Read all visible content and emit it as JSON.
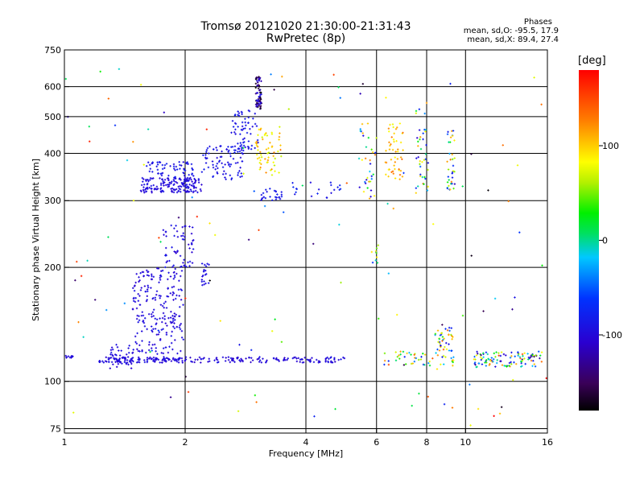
{
  "chart_data": {
    "type": "scatter",
    "title": "Tromsø 20121020 21:30:00-21:31:43",
    "subtitle": "RwPretec (8p)",
    "xlabel": "Frequency [MHz]",
    "ylabel": "Stationary phase Virtual Height [km]",
    "x_scale": "log",
    "y_scale": "log",
    "xlim": [
      1,
      16
    ],
    "ylim": [
      73,
      750
    ],
    "x_ticks": [
      1,
      2,
      4,
      6,
      8,
      10,
      16
    ],
    "y_ticks": [
      75,
      100,
      200,
      300,
      400,
      500,
      600,
      750
    ],
    "grid": true,
    "phase_stats": {
      "heading": "Phases",
      "o_line": "mean, sd,O: -95.5, 17.9",
      "x_line": "mean, sd,X: 89.4, 27.4"
    },
    "colorbar": {
      "unit": "[deg]",
      "range": [
        -180,
        180
      ],
      "tick_values": [
        -100,
        0,
        100
      ],
      "tick_labels": [
        "-100",
        "0",
        "100"
      ]
    },
    "clusters": [
      {
        "x": [
          1.0,
          1.05
        ],
        "y": [
          115,
          117
        ],
        "phase": [
          -100,
          -100
        ],
        "n": 10
      },
      {
        "x": [
          1.22,
          1.95
        ],
        "y": [
          112,
          116
        ],
        "phase": [
          -110,
          -90
        ],
        "n": 120
      },
      {
        "x": [
          1.95,
          5.0
        ],
        "y": [
          112,
          116
        ],
        "phase": [
          -115,
          -90
        ],
        "n": 130
      },
      {
        "x": [
          1.3,
          1.5
        ],
        "y": [
          108,
          125
        ],
        "phase": [
          -110,
          -90
        ],
        "n": 40
      },
      {
        "x": [
          1.48,
          1.98
        ],
        "y": [
          118,
          200
        ],
        "phase": [
          -110,
          -90
        ],
        "n": 220
      },
      {
        "x": [
          1.75,
          2.1
        ],
        "y": [
          200,
          260
        ],
        "phase": [
          -110,
          -85
        ],
        "n": 60
      },
      {
        "x": [
          2.2,
          2.3
        ],
        "y": [
          175,
          205
        ],
        "phase": [
          -100,
          -90
        ],
        "n": 20
      },
      {
        "x": [
          1.55,
          2.2
        ],
        "y": [
          315,
          345
        ],
        "phase": [
          -110,
          -90
        ],
        "n": 170
      },
      {
        "x": [
          1.6,
          2.1
        ],
        "y": [
          345,
          380
        ],
        "phase": [
          -100,
          -80
        ],
        "n": 60
      },
      {
        "x": [
          2.2,
          2.8
        ],
        "y": [
          340,
          420
        ],
        "phase": [
          -100,
          -80
        ],
        "n": 90
      },
      {
        "x": [
          2.6,
          3.05
        ],
        "y": [
          410,
          520
        ],
        "phase": [
          -100,
          -80
        ],
        "n": 60
      },
      {
        "x": [
          3.0,
          3.1
        ],
        "y": [
          520,
          640
        ],
        "phase": [
          -180,
          -90
        ],
        "n": 70
      },
      {
        "x": [
          3.0,
          3.5
        ],
        "y": [
          350,
          470
        ],
        "phase": [
          60,
          130
        ],
        "n": 60
      },
      {
        "x": [
          3.05,
          3.5
        ],
        "y": [
          300,
          325
        ],
        "phase": [
          -100,
          -80
        ],
        "n": 25
      },
      {
        "x": [
          3.6,
          4.9
        ],
        "y": [
          305,
          335
        ],
        "phase": [
          -100,
          -70
        ],
        "n": 20
      },
      {
        "x": [
          5.4,
          6.0
        ],
        "y": [
          300,
          480
        ],
        "phase": [
          -120,
          140
        ],
        "n": 35
      },
      {
        "x": [
          6.3,
          7.0
        ],
        "y": [
          340,
          480
        ],
        "phase": [
          80,
          140
        ],
        "n": 50
      },
      {
        "x": [
          7.5,
          8.1
        ],
        "y": [
          300,
          560
        ],
        "phase": [
          -110,
          140
        ],
        "n": 40
      },
      {
        "x": [
          9.0,
          9.4
        ],
        "y": [
          320,
          460
        ],
        "phase": [
          -120,
          140
        ],
        "n": 35
      },
      {
        "x": [
          5.8,
          6.1
        ],
        "y": [
          205,
          230
        ],
        "phase": [
          -100,
          140
        ],
        "n": 10
      },
      {
        "x": [
          8.4,
          9.3
        ],
        "y": [
          120,
          140
        ],
        "phase": [
          -100,
          150
        ],
        "n": 40
      },
      {
        "x": [
          10.5,
          15.5
        ],
        "y": [
          109,
          120
        ],
        "phase": [
          -150,
          150
        ],
        "n": 110
      },
      {
        "x": [
          6.2,
          9.5
        ],
        "y": [
          110,
          120
        ],
        "phase": [
          -100,
          150
        ],
        "n": 50
      },
      {
        "x": [
          1.0,
          16.0
        ],
        "y": [
          75,
          700
        ],
        "phase": [
          -180,
          180
        ],
        "n": 120
      }
    ]
  }
}
